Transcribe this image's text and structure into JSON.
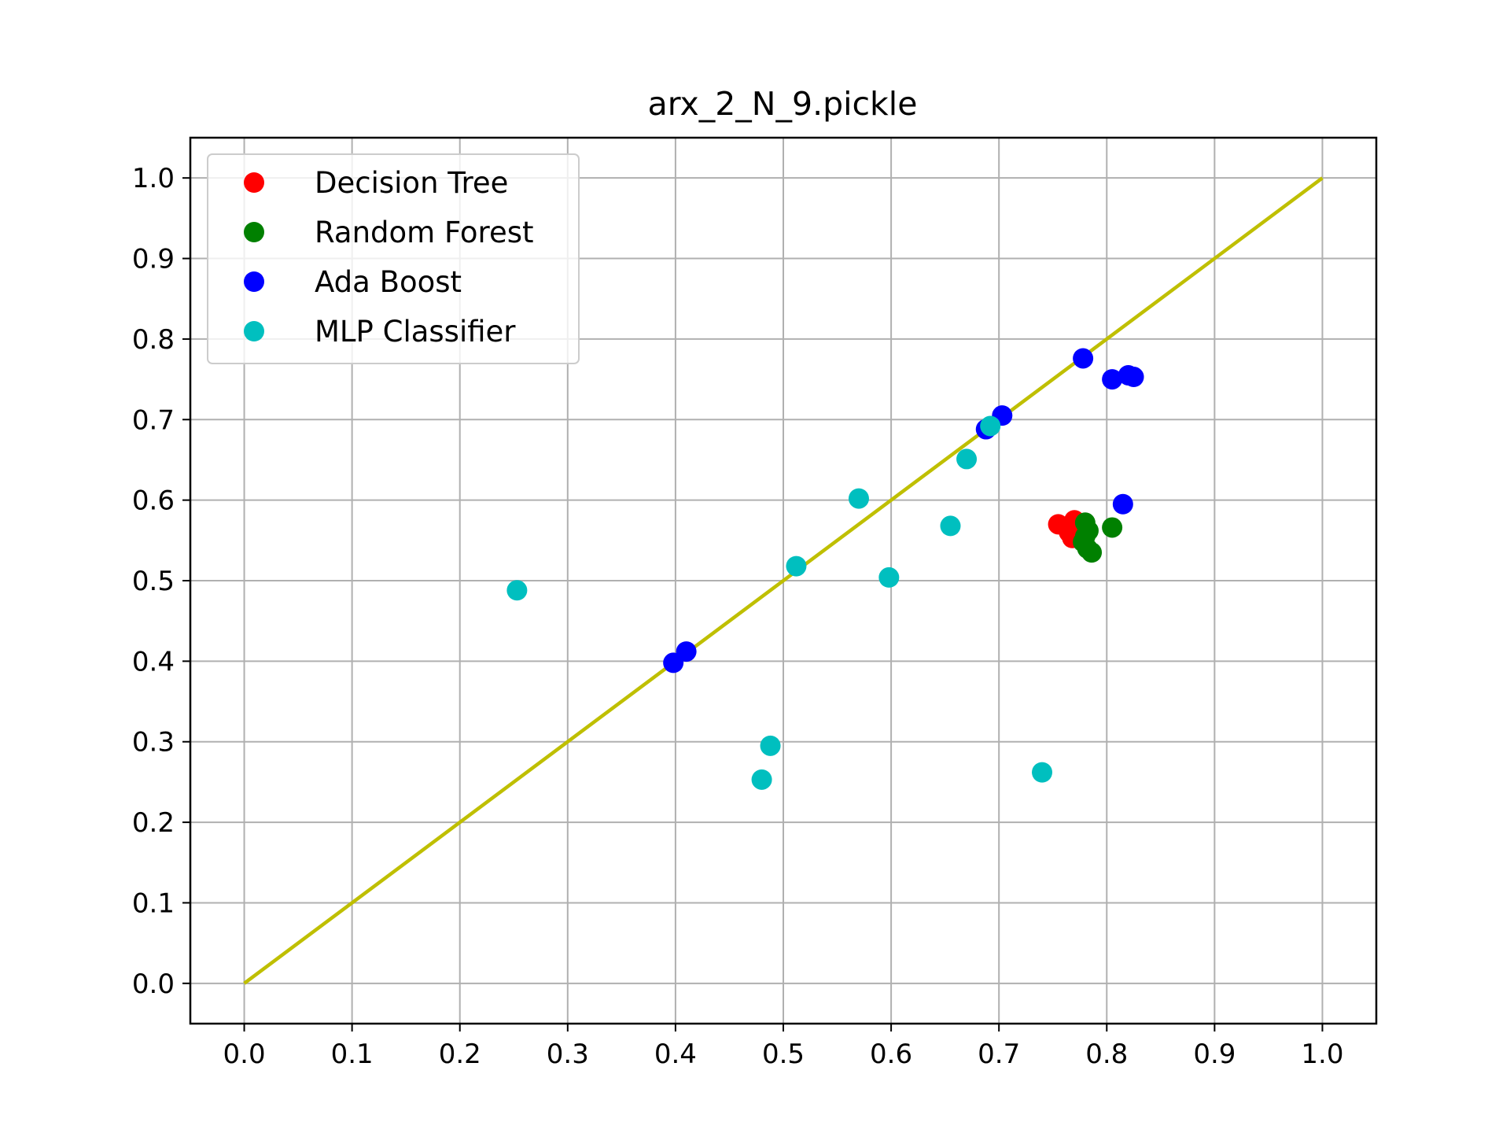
{
  "chart_data": {
    "type": "scatter",
    "title": "arx_2_N_9.pickle",
    "xlabel": "",
    "ylabel": "",
    "xlim": [
      -0.05,
      1.05
    ],
    "ylim": [
      -0.05,
      1.05
    ],
    "xticks": [
      0.0,
      0.1,
      0.2,
      0.3,
      0.4,
      0.5,
      0.6,
      0.7,
      0.8,
      0.9,
      1.0
    ],
    "yticks": [
      0.0,
      0.1,
      0.2,
      0.3,
      0.4,
      0.5,
      0.6,
      0.7,
      0.8,
      0.9,
      1.0
    ],
    "xtick_labels": [
      "0.0",
      "0.1",
      "0.2",
      "0.3",
      "0.4",
      "0.5",
      "0.6",
      "0.7",
      "0.8",
      "0.9",
      "1.0"
    ],
    "ytick_labels": [
      "0.0",
      "0.1",
      "0.2",
      "0.3",
      "0.4",
      "0.5",
      "0.6",
      "0.7",
      "0.8",
      "0.9",
      "1.0"
    ],
    "grid": true,
    "legend_position": "top-left",
    "series": [
      {
        "name": "Decision Tree",
        "color": "#ff0000",
        "points": [
          [
            0.755,
            0.57
          ],
          [
            0.762,
            0.567
          ],
          [
            0.765,
            0.56
          ],
          [
            0.768,
            0.553
          ],
          [
            0.77,
            0.575
          ],
          [
            0.775,
            0.565
          ],
          [
            0.772,
            0.562
          ]
        ]
      },
      {
        "name": "Random Forest",
        "color": "#008000",
        "points": [
          [
            0.78,
            0.572
          ],
          [
            0.783,
            0.562
          ],
          [
            0.778,
            0.548
          ],
          [
            0.782,
            0.54
          ],
          [
            0.786,
            0.535
          ],
          [
            0.805,
            0.566
          ],
          [
            0.78,
            0.555
          ]
        ]
      },
      {
        "name": "Ada Boost",
        "color": "#0000ff",
        "points": [
          [
            0.398,
            0.398
          ],
          [
            0.41,
            0.412
          ],
          [
            0.688,
            0.688
          ],
          [
            0.703,
            0.705
          ],
          [
            0.778,
            0.776
          ],
          [
            0.805,
            0.75
          ],
          [
            0.82,
            0.755
          ],
          [
            0.825,
            0.753
          ],
          [
            0.815,
            0.595
          ]
        ]
      },
      {
        "name": "MLP Classifier",
        "color": "#00bfbf",
        "points": [
          [
            0.253,
            0.488
          ],
          [
            0.48,
            0.253
          ],
          [
            0.488,
            0.295
          ],
          [
            0.512,
            0.518
          ],
          [
            0.57,
            0.602
          ],
          [
            0.598,
            0.504
          ],
          [
            0.655,
            0.568
          ],
          [
            0.67,
            0.651
          ],
          [
            0.692,
            0.692
          ],
          [
            0.74,
            0.262
          ]
        ]
      }
    ],
    "reference_line": {
      "color": "#bfbf00",
      "points": [
        [
          0.0,
          0.0
        ],
        [
          1.0,
          1.0
        ]
      ]
    }
  }
}
